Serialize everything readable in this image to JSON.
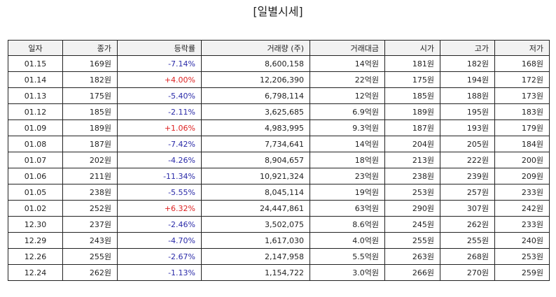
{
  "title": "[일별시세]",
  "colors": {
    "up": "#dd2222",
    "down": "#2a2aa8"
  },
  "headers": [
    "일자",
    "종가",
    "등락률",
    "거래량 (주)",
    "거래대금",
    "시가",
    "고가",
    "저가"
  ],
  "rows": [
    {
      "date": "01.15",
      "close": "169원",
      "change": "-7.14%",
      "direction": "down",
      "volume": "8,600,158",
      "amount": "14억원",
      "open": "181원",
      "high": "182원",
      "low": "168원"
    },
    {
      "date": "01.14",
      "close": "182원",
      "change": "+4.00%",
      "direction": "up",
      "volume": "12,206,390",
      "amount": "22억원",
      "open": "175원",
      "high": "194원",
      "low": "172원"
    },
    {
      "date": "01.13",
      "close": "175원",
      "change": "-5.40%",
      "direction": "down",
      "volume": "6,798,114",
      "amount": "12억원",
      "open": "185원",
      "high": "188원",
      "low": "173원"
    },
    {
      "date": "01.12",
      "close": "185원",
      "change": "-2.11%",
      "direction": "down",
      "volume": "3,625,685",
      "amount": "6.9억원",
      "open": "189원",
      "high": "195원",
      "low": "183원"
    },
    {
      "date": "01.09",
      "close": "189원",
      "change": "+1.06%",
      "direction": "up",
      "volume": "4,983,995",
      "amount": "9.3억원",
      "open": "187원",
      "high": "193원",
      "low": "179원"
    },
    {
      "date": "01.08",
      "close": "187원",
      "change": "-7.42%",
      "direction": "down",
      "volume": "7,734,641",
      "amount": "14억원",
      "open": "204원",
      "high": "205원",
      "low": "184원"
    },
    {
      "date": "01.07",
      "close": "202원",
      "change": "-4.26%",
      "direction": "down",
      "volume": "8,904,657",
      "amount": "18억원",
      "open": "213원",
      "high": "222원",
      "low": "200원"
    },
    {
      "date": "01.06",
      "close": "211원",
      "change": "-11.34%",
      "direction": "down",
      "volume": "10,921,324",
      "amount": "23억원",
      "open": "238원",
      "high": "239원",
      "low": "209원"
    },
    {
      "date": "01.05",
      "close": "238원",
      "change": "-5.55%",
      "direction": "down",
      "volume": "8,045,114",
      "amount": "19억원",
      "open": "253원",
      "high": "257원",
      "low": "233원"
    },
    {
      "date": "01.02",
      "close": "252원",
      "change": "+6.32%",
      "direction": "up",
      "volume": "24,447,861",
      "amount": "63억원",
      "open": "290원",
      "high": "307원",
      "low": "242원"
    },
    {
      "date": "12.30",
      "close": "237원",
      "change": "-2.46%",
      "direction": "down",
      "volume": "3,502,075",
      "amount": "8.6억원",
      "open": "245원",
      "high": "262원",
      "low": "233원"
    },
    {
      "date": "12.29",
      "close": "243원",
      "change": "-4.70%",
      "direction": "down",
      "volume": "1,617,030",
      "amount": "4.0억원",
      "open": "255원",
      "high": "255원",
      "low": "240원"
    },
    {
      "date": "12.26",
      "close": "255원",
      "change": "-2.67%",
      "direction": "down",
      "volume": "2,147,958",
      "amount": "5.5억원",
      "open": "263원",
      "high": "268원",
      "low": "253원"
    },
    {
      "date": "12.24",
      "close": "262원",
      "change": "-1.13%",
      "direction": "down",
      "volume": "1,154,722",
      "amount": "3.0억원",
      "open": "266원",
      "high": "270원",
      "low": "259원"
    }
  ]
}
